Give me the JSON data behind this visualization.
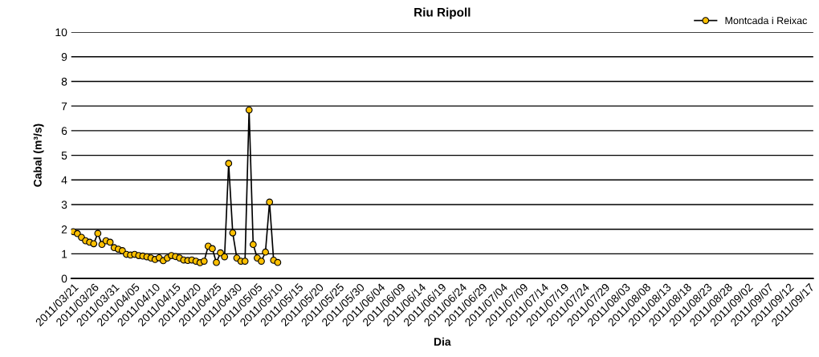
{
  "chart_data": {
    "type": "line",
    "title": "Riu Ripoll",
    "xlabel": "Dia",
    "ylabel": "Cabal (m³/s)",
    "x": [
      "2011-03-21",
      "2011-03-22",
      "2011-03-23",
      "2011-03-24",
      "2011-03-25",
      "2011-03-26",
      "2011-03-27",
      "2011-03-28",
      "2011-03-29",
      "2011-03-30",
      "2011-03-31",
      "2011-04-01",
      "2011-04-02",
      "2011-04-03",
      "2011-04-04",
      "2011-04-05",
      "2011-04-06",
      "2011-04-07",
      "2011-04-08",
      "2011-04-09",
      "2011-04-10",
      "2011-04-11",
      "2011-04-12",
      "2011-04-13",
      "2011-04-14",
      "2011-04-15",
      "2011-04-16",
      "2011-04-17",
      "2011-04-18",
      "2011-04-19",
      "2011-04-20",
      "2011-04-21",
      "2011-04-22",
      "2011-04-23",
      "2011-04-24",
      "2011-04-25",
      "2011-04-26",
      "2011-04-27",
      "2011-04-28",
      "2011-04-29",
      "2011-04-30",
      "2011-05-01",
      "2011-05-02",
      "2011-05-03",
      "2011-05-04",
      "2011-05-05",
      "2011-05-06",
      "2011-05-07",
      "2011-05-08",
      "2011-05-09",
      "2011-05-10"
    ],
    "series": [
      {
        "name": "Montcada i Reixac",
        "color": "#ffc000",
        "values": [
          1.9,
          1.82,
          1.67,
          1.53,
          1.47,
          1.41,
          1.83,
          1.38,
          1.53,
          1.47,
          1.25,
          1.19,
          1.13,
          0.98,
          0.95,
          0.98,
          0.93,
          0.91,
          0.88,
          0.83,
          0.77,
          0.84,
          0.72,
          0.83,
          0.93,
          0.89,
          0.83,
          0.75,
          0.73,
          0.75,
          0.7,
          0.64,
          0.7,
          1.31,
          1.21,
          0.65,
          1.04,
          0.88,
          4.67,
          1.85,
          0.83,
          0.7,
          0.7,
          6.84,
          1.38,
          0.83,
          0.7,
          1.07,
          3.1,
          0.74,
          0.65
        ]
      }
    ],
    "xlim": [
      "2011-03-20T12:00",
      "2011-09-18"
    ],
    "xticks": [
      {
        "value": "2011-03-21",
        "label": "2011/03/21"
      },
      {
        "value": "2011-03-26",
        "label": "2011/03/26"
      },
      {
        "value": "2011-03-31",
        "label": "2011/03/31"
      },
      {
        "value": "2011-04-05",
        "label": "2011/04/05"
      },
      {
        "value": "2011-04-10",
        "label": "2011/04/10"
      },
      {
        "value": "2011-04-15",
        "label": "2011/04/15"
      },
      {
        "value": "2011-04-20",
        "label": "2011/04/20"
      },
      {
        "value": "2011-04-25",
        "label": "2011/04/25"
      },
      {
        "value": "2011-04-30",
        "label": "2011/04/30"
      },
      {
        "value": "2011-05-05",
        "label": "2011/05/05"
      },
      {
        "value": "2011-05-10",
        "label": "2011/05/10"
      },
      {
        "value": "2011-05-15",
        "label": "2011/05/15"
      },
      {
        "value": "2011-05-20",
        "label": "2011/05/20"
      },
      {
        "value": "2011-05-25",
        "label": "2011/05/25"
      },
      {
        "value": "2011-05-30",
        "label": "2011/05/30"
      },
      {
        "value": "2011-06-04",
        "label": "2011/06/04"
      },
      {
        "value": "2011-06-09",
        "label": "2011/06/09"
      },
      {
        "value": "2011-06-14",
        "label": "2011/06/14"
      },
      {
        "value": "2011-06-19",
        "label": "2011/06/19"
      },
      {
        "value": "2011-06-24",
        "label": "2011/06/24"
      },
      {
        "value": "2011-06-29",
        "label": "2011/06/29"
      },
      {
        "value": "2011-07-04",
        "label": "2011/07/04"
      },
      {
        "value": "2011-07-09",
        "label": "2011/07/09"
      },
      {
        "value": "2011-07-14",
        "label": "2011/07/14"
      },
      {
        "value": "2011-07-19",
        "label": "2011/07/19"
      },
      {
        "value": "2011-07-24",
        "label": "2011/07/24"
      },
      {
        "value": "2011-07-29",
        "label": "2011/07/29"
      },
      {
        "value": "2011-08-03",
        "label": "2011/08/03"
      },
      {
        "value": "2011-08-08",
        "label": "2011/08/08"
      },
      {
        "value": "2011-08-13",
        "label": "2011/08/13"
      },
      {
        "value": "2011-08-18",
        "label": "2011/08/18"
      },
      {
        "value": "2011-08-23",
        "label": "2011/08/23"
      },
      {
        "value": "2011-08-28",
        "label": "2011/08/28"
      },
      {
        "value": "2011-09-02",
        "label": "2011/09/02"
      },
      {
        "value": "2011-09-07",
        "label": "2011/09/07"
      },
      {
        "value": "2011-09-12",
        "label": "2011/09/12"
      },
      {
        "value": "2011-09-17",
        "label": "2011/09/17"
      }
    ],
    "ylim": [
      0,
      10
    ],
    "yticks": [
      0,
      1,
      2,
      3,
      4,
      5,
      6,
      7,
      8,
      9,
      10
    ],
    "grid": "y",
    "legend": "top right",
    "marker": "circle",
    "line_style": "solid"
  }
}
